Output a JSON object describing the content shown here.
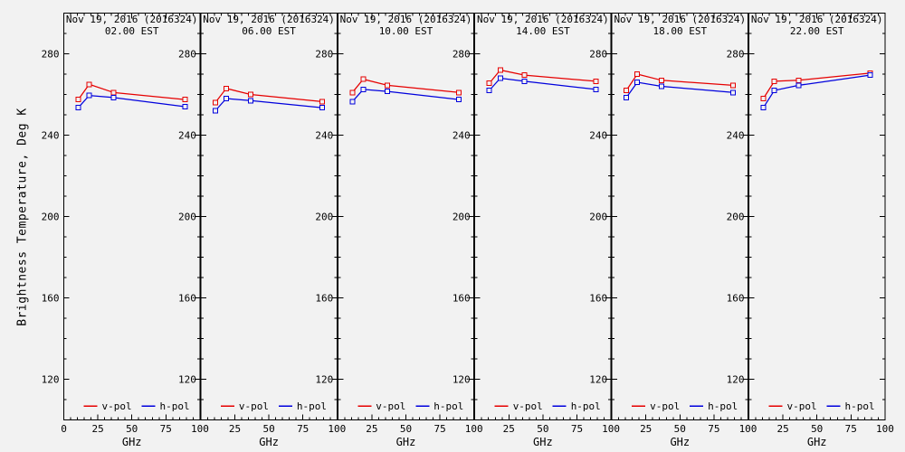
{
  "figure": {
    "background": "#f2f2f2",
    "axis_color": "#000000",
    "ylabel": "Brightness Temperature, Deg K",
    "xlabel": "GHz",
    "legend": {
      "vpol_label": "v-pol",
      "hpol_label": "h-pol"
    },
    "colors": {
      "vpol": "#e60000",
      "hpol": "#0000dd"
    }
  },
  "chart_data": {
    "type": "line",
    "title": "Nov 19, 2016 (2016324)",
    "xlabel": "GHz",
    "ylabel": "Brightness Temperature, Deg K",
    "x": [
      10.65,
      18.7,
      36.5,
      89.0
    ],
    "xlim": [
      0,
      100
    ],
    "ylim": [
      100,
      300
    ],
    "x_major_ticks": [
      0,
      25,
      50,
      75,
      100
    ],
    "x_minor_step": 5,
    "y_major_ticks": [
      120,
      160,
      200,
      240,
      280
    ],
    "y_minor_step": 10,
    "grid": false,
    "legend_position": "bottom-inside-each-panel",
    "marker": "open-square",
    "panels": [
      {
        "subtitle": "02.00 EST",
        "series": [
          {
            "name": "v-pol",
            "values": [
              257.5,
              265.0,
              261.0,
              257.5
            ]
          },
          {
            "name": "h-pol",
            "values": [
              253.5,
              259.5,
              258.5,
              254.0
            ]
          }
        ]
      },
      {
        "subtitle": "06.00 EST",
        "series": [
          {
            "name": "v-pol",
            "values": [
              256.0,
              263.0,
              260.0,
              256.5
            ]
          },
          {
            "name": "h-pol",
            "values": [
              252.0,
              258.0,
              257.0,
              253.5
            ]
          }
        ]
      },
      {
        "subtitle": "10.00 EST",
        "series": [
          {
            "name": "v-pol",
            "values": [
              261.0,
              267.5,
              264.5,
              261.0
            ]
          },
          {
            "name": "h-pol",
            "values": [
              256.5,
              262.5,
              261.5,
              257.5
            ]
          }
        ]
      },
      {
        "subtitle": "14.00 EST",
        "series": [
          {
            "name": "v-pol",
            "values": [
              265.5,
              272.0,
              269.5,
              266.5
            ]
          },
          {
            "name": "h-pol",
            "values": [
              262.0,
              268.0,
              266.5,
              262.5
            ]
          }
        ]
      },
      {
        "subtitle": "18.00 EST",
        "series": [
          {
            "name": "v-pol",
            "values": [
              262.0,
              270.0,
              267.0,
              264.5
            ]
          },
          {
            "name": "h-pol",
            "values": [
              258.5,
              266.0,
              264.0,
              261.0
            ]
          }
        ]
      },
      {
        "subtitle": "22.00 EST",
        "series": [
          {
            "name": "v-pol",
            "values": [
              258.0,
              266.5,
              267.0,
              270.5
            ]
          },
          {
            "name": "h-pol",
            "values": [
              253.5,
              262.0,
              264.5,
              269.5
            ]
          }
        ]
      }
    ]
  }
}
